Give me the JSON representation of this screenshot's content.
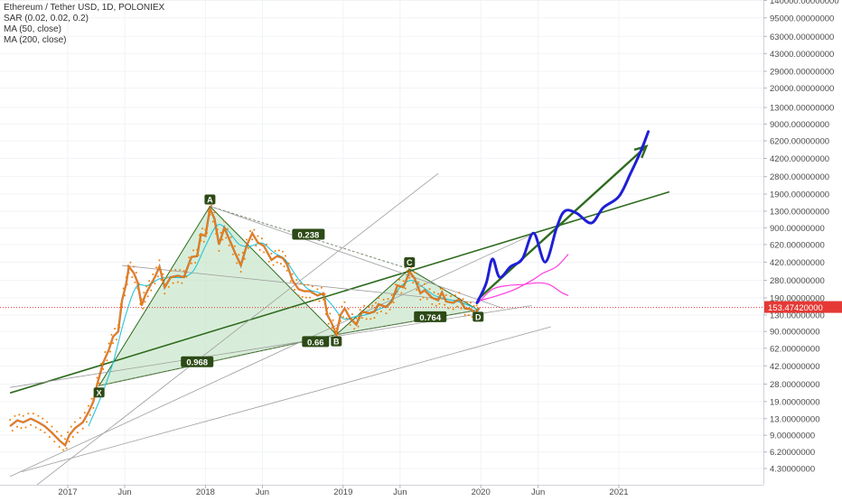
{
  "legend": {
    "title": "Ethereum / Tether USD, 1D, POLONIEX",
    "indicators": [
      "SAR (0.02, 0.02, 0.2)",
      "MA (50, close)",
      "MA (200, close)"
    ]
  },
  "chart_data": {
    "type": "line",
    "symbol": "ETH/USDT",
    "scale": "log",
    "y_ticks": [
      {
        "value": 140000,
        "label": "140000.00000000"
      },
      {
        "value": 95000,
        "label": "95000.00000000"
      },
      {
        "value": 63000,
        "label": "63000.00000000"
      },
      {
        "value": 43000,
        "label": "43000.00000000"
      },
      {
        "value": 29000,
        "label": "29000.00000000"
      },
      {
        "value": 20000,
        "label": "20000.00000000"
      },
      {
        "value": 13000,
        "label": "13000.00000000"
      },
      {
        "value": 9000,
        "label": "9000.00000000"
      },
      {
        "value": 6200,
        "label": "6200.00000000"
      },
      {
        "value": 4200,
        "label": "4200.00000000"
      },
      {
        "value": 2800,
        "label": "2800.00000000"
      },
      {
        "value": 1900,
        "label": "1900.00000000"
      },
      {
        "value": 1300,
        "label": "1300.00000000"
      },
      {
        "value": 900,
        "label": "900.00000000"
      },
      {
        "value": 620,
        "label": "620.00000000"
      },
      {
        "value": 420,
        "label": "420.00000000"
      },
      {
        "value": 280,
        "label": "280.00000000"
      },
      {
        "value": 190,
        "label": "190.00000000"
      },
      {
        "value": 130,
        "label": "130.00000000"
      },
      {
        "value": 90,
        "label": "90.00000000"
      },
      {
        "value": 62,
        "label": "62.00000000"
      },
      {
        "value": 42,
        "label": "42.00000000"
      },
      {
        "value": 28,
        "label": "28.00000000"
      },
      {
        "value": 19,
        "label": "19.00000000"
      },
      {
        "value": 13,
        "label": "13.00000000"
      },
      {
        "value": 9,
        "label": "9.00000000"
      },
      {
        "value": 6.2,
        "label": "6.20000000"
      },
      {
        "value": 4.3,
        "label": "4.30000000"
      }
    ],
    "x_ticks": [
      {
        "date": "2017-01-01",
        "label": "2017"
      },
      {
        "date": "2017-06-01",
        "label": "Jun"
      },
      {
        "date": "2018-01-01",
        "label": "2018"
      },
      {
        "date": "2018-06-01",
        "label": "Jun"
      },
      {
        "date": "2019-01-01",
        "label": "2019"
      },
      {
        "date": "2019-06-01",
        "label": "Jun"
      },
      {
        "date": "2020-01-01",
        "label": "2020"
      },
      {
        "date": "2020-06-01",
        "label": "Jun"
      },
      {
        "date": "2021-01-01",
        "label": "2021"
      }
    ],
    "current_price": {
      "value": 153.4742,
      "label": "153.47420000"
    },
    "colors": {
      "price_up": "#f57c00",
      "ma50": "#26c6da",
      "sar": "#f57c00",
      "pattern_fill": "#c8e6c9",
      "pattern_stroke": "#2e6b1f",
      "projection": "#1f1fd6",
      "arrow": "#2e6b1f",
      "current": "#e53935",
      "alt_path": "#ff3de0"
    },
    "series": [
      {
        "type": "price",
        "points": [
          [
            "2016-08-01",
            11
          ],
          [
            "2016-08-20",
            12.5
          ],
          [
            "2016-09-05",
            12
          ],
          [
            "2016-09-25",
            13
          ],
          [
            "2016-10-15",
            12
          ],
          [
            "2016-11-01",
            11
          ],
          [
            "2016-11-20",
            9.5
          ],
          [
            "2016-12-10",
            8
          ],
          [
            "2016-12-25",
            7.2
          ],
          [
            "2017-01-05",
            9
          ],
          [
            "2017-01-20",
            10.5
          ],
          [
            "2017-02-10",
            12
          ],
          [
            "2017-02-25",
            15
          ],
          [
            "2017-03-10",
            19
          ],
          [
            "2017-03-20",
            28
          ],
          [
            "2017-04-05",
            45
          ],
          [
            "2017-04-20",
            60
          ],
          [
            "2017-05-01",
            80
          ],
          [
            "2017-05-15",
            90
          ],
          [
            "2017-05-25",
            180
          ],
          [
            "2017-06-05",
            260
          ],
          [
            "2017-06-12",
            380
          ],
          [
            "2017-06-25",
            330
          ],
          [
            "2017-07-05",
            270
          ],
          [
            "2017-07-16",
            160
          ],
          [
            "2017-07-25",
            200
          ],
          [
            "2017-08-05",
            240
          ],
          [
            "2017-08-20",
            300
          ],
          [
            "2017-09-01",
            380
          ],
          [
            "2017-09-15",
            240
          ],
          [
            "2017-10-01",
            300
          ],
          [
            "2017-10-20",
            310
          ],
          [
            "2017-11-05",
            300
          ],
          [
            "2017-11-25",
            470
          ],
          [
            "2017-12-10",
            480
          ],
          [
            "2017-12-20",
            780
          ],
          [
            "2018-01-01",
            750
          ],
          [
            "2018-01-13",
            1380
          ],
          [
            "2018-01-25",
            1100
          ],
          [
            "2018-02-06",
            620
          ],
          [
            "2018-02-20",
            900
          ],
          [
            "2018-03-05",
            700
          ],
          [
            "2018-03-20",
            520
          ],
          [
            "2018-04-05",
            390
          ],
          [
            "2018-04-20",
            600
          ],
          [
            "2018-05-05",
            800
          ],
          [
            "2018-05-20",
            650
          ],
          [
            "2018-06-05",
            600
          ],
          [
            "2018-06-25",
            440
          ],
          [
            "2018-07-10",
            480
          ],
          [
            "2018-07-25",
            460
          ],
          [
            "2018-08-05",
            400
          ],
          [
            "2018-08-20",
            280
          ],
          [
            "2018-09-05",
            230
          ],
          [
            "2018-09-20",
            220
          ],
          [
            "2018-10-05",
            220
          ],
          [
            "2018-10-25",
            200
          ],
          [
            "2018-11-10",
            210
          ],
          [
            "2018-11-20",
            130
          ],
          [
            "2018-12-01",
            110
          ],
          [
            "2018-12-14",
            84
          ],
          [
            "2018-12-25",
            130
          ],
          [
            "2019-01-05",
            150
          ],
          [
            "2019-01-20",
            120
          ],
          [
            "2019-02-05",
            105
          ],
          [
            "2019-02-20",
            140
          ],
          [
            "2019-03-10",
            135
          ],
          [
            "2019-03-25",
            140
          ],
          [
            "2019-04-05",
            165
          ],
          [
            "2019-04-25",
            155
          ],
          [
            "2019-05-10",
            175
          ],
          [
            "2019-05-25",
            250
          ],
          [
            "2019-06-10",
            240
          ],
          [
            "2019-06-26",
            340
          ],
          [
            "2019-07-10",
            290
          ],
          [
            "2019-07-25",
            210
          ],
          [
            "2019-08-05",
            225
          ],
          [
            "2019-08-25",
            190
          ],
          [
            "2019-09-10",
            180
          ],
          [
            "2019-09-20",
            215
          ],
          [
            "2019-10-01",
            175
          ],
          [
            "2019-10-20",
            170
          ],
          [
            "2019-11-05",
            185
          ],
          [
            "2019-11-20",
            150
          ],
          [
            "2019-12-05",
            148
          ],
          [
            "2019-12-18",
            133
          ],
          [
            "2019-12-28",
            153
          ]
        ]
      },
      {
        "type": "ma50",
        "points": [
          [
            "2017-02-25",
            11
          ],
          [
            "2017-04-01",
            22
          ],
          [
            "2017-05-01",
            45
          ],
          [
            "2017-06-01",
            120
          ],
          [
            "2017-07-01",
            240
          ],
          [
            "2017-08-01",
            250
          ],
          [
            "2017-09-01",
            290
          ],
          [
            "2017-10-01",
            300
          ],
          [
            "2017-11-01",
            300
          ],
          [
            "2017-12-01",
            350
          ],
          [
            "2018-01-01",
            600
          ],
          [
            "2018-02-01",
            950
          ],
          [
            "2018-03-01",
            850
          ],
          [
            "2018-04-01",
            620
          ],
          [
            "2018-05-01",
            600
          ],
          [
            "2018-06-01",
            640
          ],
          [
            "2018-07-01",
            520
          ],
          [
            "2018-08-01",
            440
          ],
          [
            "2018-09-01",
            300
          ],
          [
            "2018-10-01",
            230
          ],
          [
            "2018-11-01",
            210
          ],
          [
            "2018-12-01",
            165
          ],
          [
            "2019-01-01",
            120
          ],
          [
            "2019-02-01",
            125
          ],
          [
            "2019-03-01",
            130
          ],
          [
            "2019-04-01",
            145
          ],
          [
            "2019-05-01",
            165
          ],
          [
            "2019-06-01",
            240
          ],
          [
            "2019-07-01",
            280
          ],
          [
            "2019-08-01",
            240
          ],
          [
            "2019-09-01",
            200
          ],
          [
            "2019-10-01",
            185
          ],
          [
            "2019-11-01",
            175
          ],
          [
            "2019-12-01",
            160
          ],
          [
            "2019-12-28",
            145
          ]
        ]
      }
    ],
    "pattern": {
      "points": [
        {
          "label": "X",
          "date": "2017-03-25",
          "value": 27
        },
        {
          "label": "A",
          "date": "2018-01-13",
          "value": 1450
        },
        {
          "label": "B",
          "date": "2018-12-14",
          "value": 84
        },
        {
          "label": "C",
          "date": "2019-06-26",
          "value": 360
        },
        {
          "label": "D",
          "date": "2019-12-25",
          "value": 145
        }
      ],
      "ratios": [
        {
          "label": "0.968",
          "date": "2017-12-10",
          "value": 46
        },
        {
          "label": "0.66",
          "date": "2018-10-20",
          "value": 72
        },
        {
          "label": "0.238",
          "date": "2018-10-01",
          "value": 780
        },
        {
          "label": "0.764",
          "date": "2019-08-20",
          "value": 125
        }
      ]
    },
    "trendlines": [
      {
        "kind": "green",
        "from": [
          "2016-08-01",
          23
        ],
        "to": [
          "2021-05-15",
          2000
        ]
      },
      {
        "kind": "thin",
        "from": [
          "2016-08-01",
          26
        ],
        "to": [
          "2020-05-15",
          160
        ]
      },
      {
        "kind": "thin",
        "from": [
          "2018-01-13",
          1450
        ],
        "to": [
          "2020-03-01",
          150
        ]
      },
      {
        "kind": "thin",
        "from": [
          "2017-05-25",
          390
        ],
        "to": [
          "2019-12-28",
          170
        ]
      },
      {
        "kind": "thin",
        "from": [
          "2016-09-20",
          2.6
        ],
        "to": [
          "2019-09-10",
          3000
        ]
      },
      {
        "kind": "thin",
        "from": [
          "2016-08-01",
          3.6
        ],
        "to": [
          "2020-05-25",
          800
        ]
      },
      {
        "kind": "thin",
        "from": [
          "2016-09-01",
          4.0
        ],
        "to": [
          "2020-07-05",
          100
        ]
      }
    ],
    "arrow": {
      "from": [
        "2019-12-25",
        185
      ],
      "to": [
        "2021-03-15",
        5500
      ]
    },
    "projection": [
      [
        "2019-12-22",
        170
      ],
      [
        "2020-01-15",
        260
      ],
      [
        "2020-02-01",
        450
      ],
      [
        "2020-02-20",
        300
      ],
      [
        "2020-03-20",
        380
      ],
      [
        "2020-04-20",
        450
      ],
      [
        "2020-05-20",
        800
      ],
      [
        "2020-06-20",
        420
      ],
      [
        "2020-07-20",
        900
      ],
      [
        "2020-08-10",
        1300
      ],
      [
        "2020-09-10",
        1250
      ],
      [
        "2020-10-20",
        1000
      ],
      [
        "2020-11-20",
        1400
      ],
      [
        "2021-01-01",
        1800
      ],
      [
        "2021-02-01",
        3000
      ],
      [
        "2021-03-01",
        5000
      ],
      [
        "2021-03-20",
        7600
      ]
    ],
    "alt_paths": [
      [
        [
          "2019-12-25",
          170
        ],
        [
          "2020-02-01",
          230
        ],
        [
          "2020-03-15",
          250
        ],
        [
          "2020-04-20",
          255
        ],
        [
          "2020-06-01",
          265
        ],
        [
          "2020-07-01",
          255
        ],
        [
          "2020-08-01",
          215
        ],
        [
          "2020-08-20",
          200
        ]
      ],
      [
        [
          "2020-01-01",
          180
        ],
        [
          "2020-02-15",
          200
        ],
        [
          "2020-04-01",
          230
        ],
        [
          "2020-05-15",
          280
        ],
        [
          "2020-06-15",
          330
        ],
        [
          "2020-07-20",
          380
        ],
        [
          "2020-08-20",
          500
        ]
      ]
    ]
  }
}
